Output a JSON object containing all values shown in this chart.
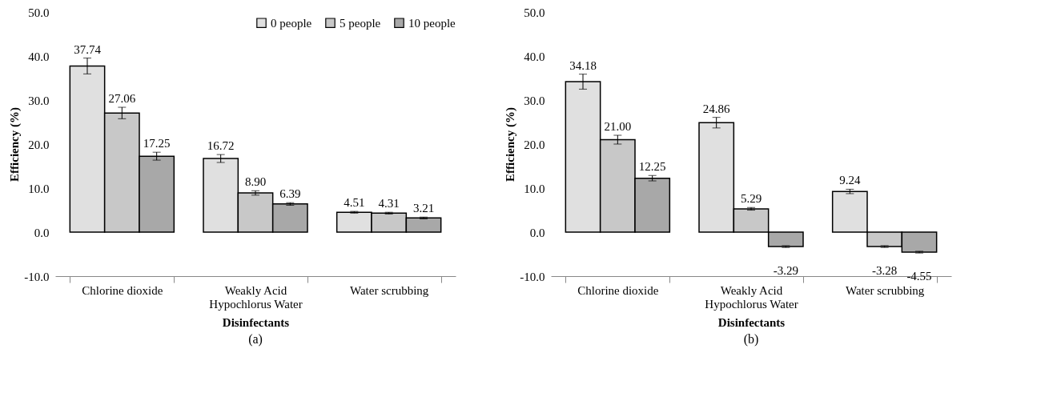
{
  "chart_data": [
    {
      "type": "bar",
      "categories": [
        "Chlorine dioxide",
        "Weakly Acid Hypochlorus Water",
        "Water scrubbing"
      ],
      "xlabel": "Disinfectants",
      "ylabel": "Efficiency (%)",
      "ylim": [
        -10,
        50
      ],
      "yticks": [
        {
          "value": -10,
          "label": "-10.0"
        },
        {
          "value": 0,
          "label": "0.0"
        },
        {
          "value": 10,
          "label": "10.0"
        },
        {
          "value": 20,
          "label": "20.0"
        },
        {
          "value": 30,
          "label": "30.0"
        },
        {
          "value": 40,
          "label": "40.0"
        },
        {
          "value": 50,
          "label": "50.0"
        }
      ],
      "legend": "top right",
      "grid": false,
      "annotations": [
        "(a)"
      ],
      "series": [
        {
          "name": "0 people",
          "color": "#e0e0e0",
          "values": [
            37.74,
            16.72,
            4.51
          ],
          "value_labels": [
            "37.74",
            "16.72",
            "4.51"
          ],
          "errors": [
            1.8,
            0.9,
            0.2
          ]
        },
        {
          "name": "5 people",
          "color": "#c8c8c8",
          "values": [
            27.06,
            8.9,
            4.31
          ],
          "value_labels": [
            "27.06",
            "8.90",
            "4.31"
          ],
          "errors": [
            1.3,
            0.5,
            0.2
          ]
        },
        {
          "name": "10 people",
          "color": "#a8a8a8",
          "values": [
            17.25,
            6.39,
            3.21
          ],
          "value_labels": [
            "17.25",
            "6.39",
            "3.21"
          ],
          "errors": [
            0.9,
            0.3,
            0.2
          ]
        }
      ]
    },
    {
      "type": "bar",
      "categories": [
        "Chlorine dioxide",
        "Weakly Acid Hypochlorus Water",
        "Water scrubbing"
      ],
      "xlabel": "Disinfectants",
      "ylabel": "Efficiency (%)",
      "ylim": [
        -10,
        50
      ],
      "yticks": [
        {
          "value": -10,
          "label": "-10.0"
        },
        {
          "value": 0,
          "label": "0.0"
        },
        {
          "value": 10,
          "label": "10.0"
        },
        {
          "value": 20,
          "label": "20.0"
        },
        {
          "value": 30,
          "label": "30.0"
        },
        {
          "value": 40,
          "label": "40.0"
        },
        {
          "value": 50,
          "label": "50.0"
        }
      ],
      "legend": "top right",
      "grid": false,
      "annotations": [
        "(b)"
      ],
      "series": [
        {
          "name": "0 people",
          "color": "#e0e0e0",
          "values": [
            34.18,
            24.86,
            9.24
          ],
          "value_labels": [
            "34.18",
            "24.86",
            "9.24"
          ],
          "errors": [
            1.7,
            1.2,
            0.5
          ]
        },
        {
          "name": "5 people",
          "color": "#c8c8c8",
          "values": [
            21.0,
            5.29,
            -3.28
          ],
          "value_labels": [
            "21.00",
            "5.29",
            "-3.28"
          ],
          "errors": [
            1.0,
            0.3,
            0.2
          ]
        },
        {
          "name": "10 people",
          "color": "#a8a8a8",
          "values": [
            12.25,
            -3.29,
            -4.55
          ],
          "value_labels": [
            "12.25",
            "-3.29",
            "-4.55"
          ],
          "errors": [
            0.6,
            0.2,
            0.2
          ]
        }
      ]
    }
  ]
}
